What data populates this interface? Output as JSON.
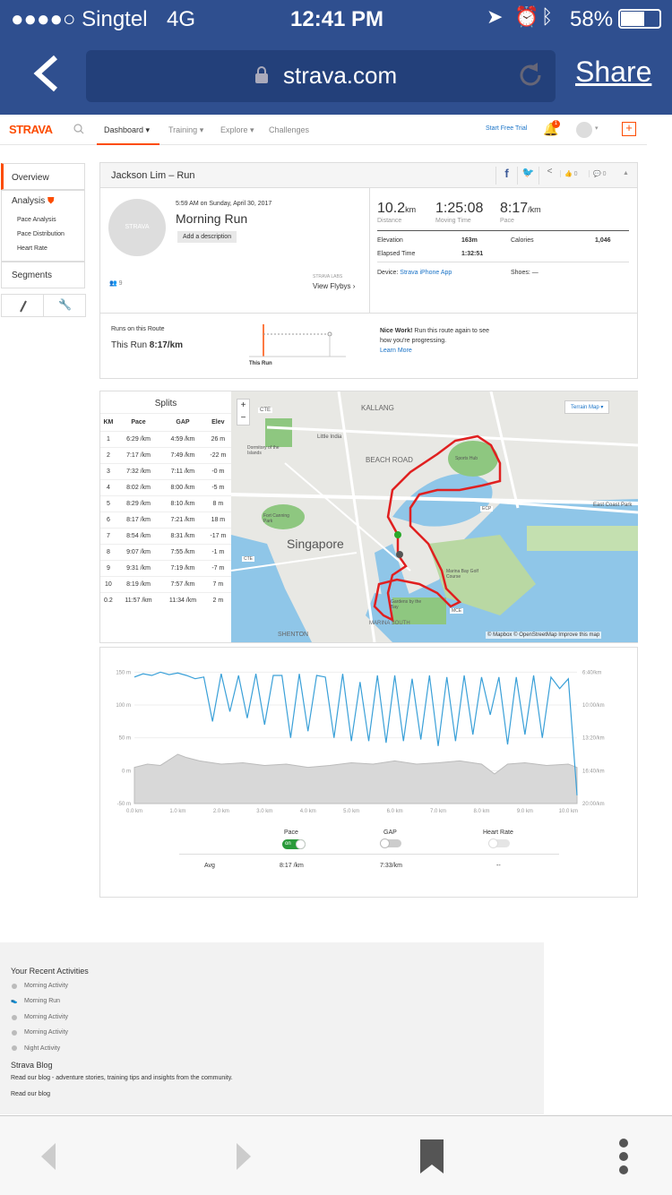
{
  "status_bar": {
    "carrier": "●●●●○ Singtel",
    "network": "4G",
    "time": "12:41 PM",
    "battery": "58%"
  },
  "browser": {
    "url": "strava.com",
    "share_label": "Share"
  },
  "strava_nav": {
    "logo": "STRAVA",
    "tabs": [
      "Dashboard",
      "Training",
      "Explore",
      "Challenges"
    ],
    "start_trial": "Start Free Trial",
    "notif_count": "1"
  },
  "sidebar": {
    "overview": "Overview",
    "analysis": "Analysis",
    "analysis_items": [
      "Pace Analysis",
      "Pace Distribution",
      "Heart Rate"
    ],
    "segments": "Segments"
  },
  "activity": {
    "header": "Jackson Lim – Run",
    "kudos": "0",
    "comments": "0",
    "date": "5:59 AM on Sunday, April 30, 2017",
    "title": "Morning Run",
    "add_description": "Add a description",
    "avatar_label": "STRAVA",
    "kudos_count": "9",
    "flyby_small": "STRAVA LABS",
    "flyby_label": "View Flybys",
    "distance": "10.2",
    "distance_unit": "km",
    "distance_label": "Distance",
    "moving_time": "1:25:08",
    "moving_label": "Moving Time",
    "pace": "8:17",
    "pace_unit": "/km",
    "pace_label": "Pace",
    "elevation_label": "Elevation",
    "elevation": "163m",
    "calories_label": "Calories",
    "calories": "1,046",
    "elapsed_label": "Elapsed Time",
    "elapsed": "1:32:51",
    "device_label": "Device:",
    "device": "Strava iPhone App",
    "shoes_label": "Shoes:",
    "shoes": "—",
    "route_heading": "Runs on this Route",
    "this_run_label": "This Run",
    "this_run_pace": "8:17/km",
    "chart_label": "This Run",
    "nice_work_bold": "Nice Work!",
    "nice_work_text": "Run this route again to see how you're progressing.",
    "learn_more": "Learn More"
  },
  "splits": {
    "title": "Splits",
    "headers": [
      "KM",
      "Pace",
      "GAP",
      "Elev"
    ],
    "rows": [
      [
        "1",
        "6:29 /km",
        "4:59 /km",
        "26 m"
      ],
      [
        "2",
        "7:17 /km",
        "7:49 /km",
        "-22 m"
      ],
      [
        "3",
        "7:32 /km",
        "7:11 /km",
        "-0 m"
      ],
      [
        "4",
        "8:02 /km",
        "8:00 /km",
        "-5 m"
      ],
      [
        "5",
        "8:29 /km",
        "8:10 /km",
        "8 m"
      ],
      [
        "6",
        "8:17 /km",
        "7:21 /km",
        "18 m"
      ],
      [
        "7",
        "8:54 /km",
        "8:31 /km",
        "-17 m"
      ],
      [
        "8",
        "9:07 /km",
        "7:55 /km",
        "-1 m"
      ],
      [
        "9",
        "9:31 /km",
        "7:19 /km",
        "-7 m"
      ],
      [
        "10",
        "8:19 /km",
        "7:57 /km",
        "7 m"
      ],
      [
        "0.2",
        "11:57 /km",
        "11:34 /km",
        "2 m"
      ]
    ]
  },
  "map": {
    "terrain_label": "Terrain Map",
    "city": "Singapore",
    "labels": [
      "KALLANG",
      "CTE",
      "Little India",
      "Dormitory of the Islands",
      "BEACH ROAD",
      "Fort Canning Park",
      "ECP",
      "East Coast Park",
      "CTE",
      "Marina Bay Golf Course",
      "Gardens by the Bay",
      "MCE",
      "Sports Hub",
      "MARINA SOUTH",
      "SHENTON"
    ],
    "attribution": "© Mapbox © OpenStreetMap Improve this map"
  },
  "chart_data": {
    "type": "line",
    "x_unit": "km",
    "x_ticks": [
      "0.0 km",
      "1.0 km",
      "2.0 km",
      "3.0 km",
      "4.0 km",
      "5.0 km",
      "6.0 km",
      "7.0 km",
      "8.0 km",
      "9.0 km",
      "10.0 km"
    ],
    "y_left_ticks": [
      "150 m",
      "100 m",
      "50 m",
      "0 m",
      "-50 m"
    ],
    "y_right_ticks": [
      "6:40/km",
      "10:00/km",
      "13:20/km",
      "16:40/km",
      "20:00/km"
    ],
    "ylim_left": [
      -50,
      160
    ],
    "series": [
      {
        "name": "Pace",
        "unit": "seconds per km",
        "x": [
          0.0,
          0.2,
          0.4,
          0.6,
          0.8,
          1.0,
          1.2,
          1.4,
          1.6,
          1.8,
          2.0,
          2.2,
          2.4,
          2.6,
          2.8,
          3.0,
          3.2,
          3.4,
          3.6,
          3.8,
          4.0,
          4.2,
          4.4,
          4.6,
          4.8,
          5.0,
          5.2,
          5.4,
          5.6,
          5.8,
          6.0,
          6.2,
          6.4,
          6.6,
          6.8,
          7.0,
          7.2,
          7.4,
          7.6,
          7.8,
          8.0,
          8.2,
          8.4,
          8.6,
          8.8,
          9.0,
          9.2,
          9.4,
          9.6,
          9.8,
          10.0,
          10.2
        ],
        "values": [
          430,
          410,
          420,
          400,
          415,
          405,
          420,
          440,
          430,
          700,
          410,
          640,
          420,
          680,
          410,
          720,
          420,
          420,
          800,
          410,
          760,
          420,
          430,
          800,
          410,
          820,
          460,
          820,
          420,
          830,
          420,
          820,
          440,
          810,
          420,
          850,
          430,
          820,
          420,
          780,
          430,
          660,
          430,
          840,
          430,
          780,
          420,
          800,
          430,
          500,
          440,
          1150
        ]
      },
      {
        "name": "Elevation",
        "unit": "m",
        "x": [
          0.0,
          0.3,
          0.6,
          1.0,
          1.2,
          1.5,
          2.0,
          2.5,
          3.0,
          3.5,
          4.0,
          4.5,
          5.0,
          5.5,
          6.0,
          6.5,
          7.0,
          7.5,
          8.0,
          8.3,
          8.6,
          9.0,
          9.5,
          10.0,
          10.2
        ],
        "values": [
          5,
          10,
          8,
          25,
          20,
          15,
          10,
          12,
          8,
          10,
          5,
          8,
          12,
          10,
          15,
          10,
          12,
          15,
          10,
          -5,
          10,
          12,
          8,
          10,
          5
        ]
      }
    ],
    "legend": [
      "Pace",
      "GAP",
      "Heart Rate"
    ],
    "pace_toggle": "on",
    "avg_label": "Avg",
    "avg_pace": "8:17 /km",
    "avg_gap": "7:33/km",
    "avg_hr": "--"
  },
  "footer": {
    "recent_title": "Your Recent Activities",
    "recent_items": [
      "Morning Activity",
      "Morning Run",
      "Morning Activity",
      "Morning Activity",
      "Night Activity"
    ],
    "blog_title": "Strava Blog",
    "blog_text": "Read our blog - adventure stories, training tips and insights from the community.",
    "blog_link": "Read our blog"
  }
}
